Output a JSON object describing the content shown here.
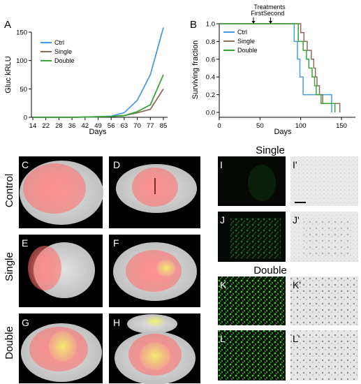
{
  "panels": {
    "A": "A",
    "B": "B",
    "C": "C",
    "D": "D",
    "E": "E",
    "F": "F",
    "G": "G",
    "H": "H",
    "I": "I",
    "I2": "I'",
    "J": "J",
    "J2": "J'",
    "K": "K",
    "K2": "K'",
    "L": "L",
    "L2": "L'"
  },
  "rows": {
    "control": "Control",
    "single": "Single",
    "double": "Double"
  },
  "micro_headers": {
    "single": "Single",
    "double": "Double"
  },
  "colors": {
    "ctrl": "#4a9be8",
    "single": "#8b6c5c",
    "double": "#3aa635"
  },
  "chart_data": [
    {
      "type": "line",
      "panel": "A",
      "xlabel": "Days",
      "ylabel": "Gluc kRLU",
      "categories": [
        "14",
        "22",
        "28",
        "36",
        "42",
        "49",
        "56",
        "63",
        "70",
        "77",
        "85"
      ],
      "ylim": [
        0,
        150
      ],
      "yticks": [
        0,
        50,
        100,
        150
      ],
      "legend": "top-left",
      "series": [
        {
          "name": "Ctrl",
          "values": [
            0,
            0,
            0,
            0,
            0.5,
            1,
            2,
            8,
            30,
            75,
            158
          ]
        },
        {
          "name": "Single",
          "values": [
            0,
            0,
            0,
            0,
            0.5,
            1,
            1.5,
            3,
            8,
            14,
            50
          ]
        },
        {
          "name": "Double",
          "values": [
            0,
            0,
            0,
            0,
            0.5,
            1,
            1.5,
            3,
            10,
            22,
            75
          ]
        }
      ]
    },
    {
      "type": "line",
      "panel": "B",
      "xlabel": "Days",
      "ylabel": "Surviving fraction",
      "xlim": [
        0,
        150
      ],
      "xticks": [
        0,
        50,
        100,
        150
      ],
      "ylim": [
        0,
        1
      ],
      "yticks": [
        "0.0",
        "0.2",
        "0.4",
        "0.6",
        "0.8",
        "1.0"
      ],
      "legend": "top-left",
      "annotations": {
        "header": "Treatments",
        "first": "First",
        "second": "Second",
        "first_day": 42,
        "second_day": 63
      },
      "series": [
        {
          "name": "Ctrl",
          "steps": [
            [
              0,
              1
            ],
            [
              92,
              1
            ],
            [
              92,
              0.8
            ],
            [
              96,
              0.8
            ],
            [
              96,
              0.6
            ],
            [
              99,
              0.6
            ],
            [
              99,
              0.4
            ],
            [
              103,
              0.4
            ],
            [
              103,
              0.2
            ],
            [
              112,
              0.2
            ],
            [
              112,
              0.2
            ],
            [
              138,
              0.2
            ],
            [
              138,
              0
            ]
          ]
        },
        {
          "name": "Single",
          "steps": [
            [
              0,
              1
            ],
            [
              100,
              1
            ],
            [
              100,
              0.9
            ],
            [
              104,
              0.9
            ],
            [
              104,
              0.8
            ],
            [
              108,
              0.8
            ],
            [
              108,
              0.7
            ],
            [
              113,
              0.7
            ],
            [
              113,
              0.6
            ],
            [
              116,
              0.6
            ],
            [
              116,
              0.5
            ],
            [
              118,
              0.5
            ],
            [
              118,
              0.4
            ],
            [
              120,
              0.4
            ],
            [
              120,
              0.3
            ],
            [
              123,
              0.3
            ],
            [
              123,
              0.2
            ],
            [
              127,
              0.2
            ],
            [
              127,
              0.1
            ],
            [
              148,
              0.1
            ],
            [
              148,
              0
            ]
          ]
        },
        {
          "name": "Double",
          "steps": [
            [
              0,
              1
            ],
            [
              97,
              1
            ],
            [
              97,
              0.8
            ],
            [
              103,
              0.8
            ],
            [
              103,
              0.7
            ],
            [
              107,
              0.7
            ],
            [
              107,
              0.6
            ],
            [
              110,
              0.6
            ],
            [
              110,
              0.5
            ],
            [
              114,
              0.5
            ],
            [
              114,
              0.4
            ],
            [
              117,
              0.4
            ],
            [
              117,
              0.3
            ],
            [
              119,
              0.3
            ],
            [
              119,
              0.2
            ],
            [
              125,
              0.2
            ],
            [
              125,
              0.1
            ],
            [
              142,
              0.1
            ],
            [
              142,
              0
            ]
          ]
        }
      ]
    }
  ]
}
